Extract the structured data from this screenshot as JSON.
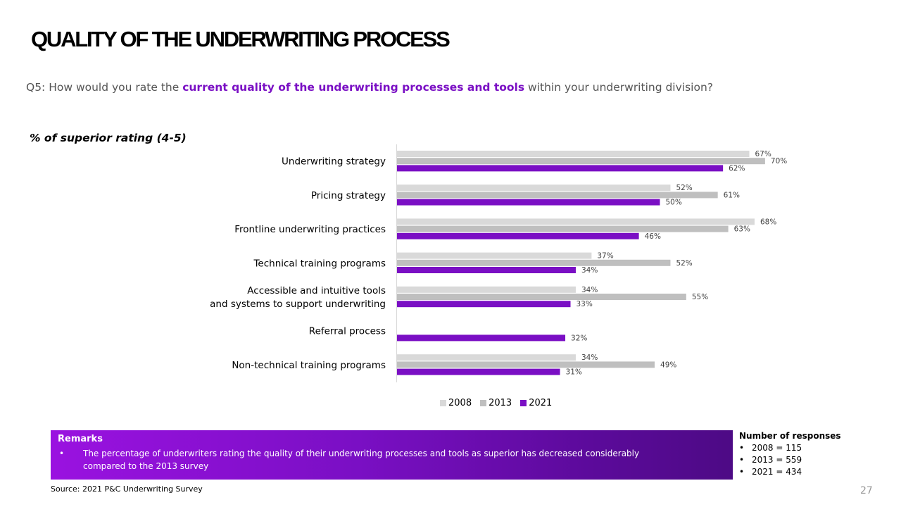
{
  "page": {
    "title": "QUALITY OF THE UNDERWRITING PROCESS",
    "question": {
      "prefix": "Q5: How would you rate the ",
      "highlight": "current quality of the underwriting processes and tools",
      "suffix": " within your underwriting division?"
    },
    "metric_label": "% of superior rating (4-5)",
    "remarks": {
      "title": "Remarks",
      "bullet": "•",
      "text": "The percentage of underwriters rating the quality of their underwriting processes and tools as superior has decreased considerably compared to the 2013 survey"
    },
    "responses": {
      "title": "Number of responses",
      "items": [
        "2008 = 115",
        "2013 = 559",
        "2021 = 434"
      ]
    },
    "source": "Source: 2021 P&C Underwriting Survey",
    "page_number": "27"
  },
  "chart_data": {
    "type": "bar",
    "orientation": "horizontal",
    "categories": [
      [
        "Underwriting strategy"
      ],
      [
        "Pricing strategy"
      ],
      [
        "Frontline underwriting practices"
      ],
      [
        "Technical training programs"
      ],
      [
        "Accessible and intuitive tools",
        "and systems to support underwriting"
      ],
      [
        "Referral process"
      ],
      [
        "Non-technical training programs"
      ]
    ],
    "series": [
      {
        "name": "2008",
        "color": "#d9d9d9",
        "values": [
          67,
          52,
          68,
          37,
          34,
          null,
          34
        ]
      },
      {
        "name": "2013",
        "color": "#bfbfbf",
        "values": [
          70,
          61,
          63,
          52,
          55,
          null,
          49
        ]
      },
      {
        "name": "2021",
        "color": "#7a0fc4",
        "values": [
          62,
          50,
          46,
          34,
          33,
          32,
          31
        ]
      }
    ],
    "value_suffix": "%",
    "xlim": [
      0,
      100
    ],
    "legend_position": "bottom",
    "grid": false
  }
}
